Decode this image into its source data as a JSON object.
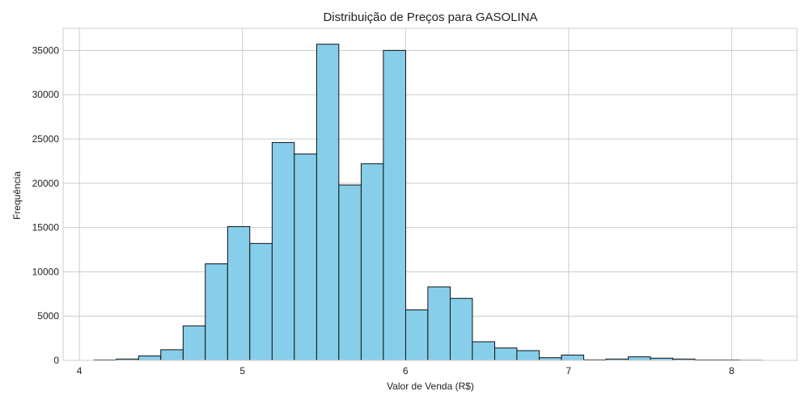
{
  "chart_data": {
    "type": "bar",
    "title": "Distribuição de Preços para GASOLINA",
    "xlabel": "Valor de Venda (R$)",
    "ylabel": "Frequência",
    "xlim": [
      3.9,
      8.4
    ],
    "ylim": [
      0,
      37500
    ],
    "xticks": [
      4,
      5,
      6,
      7,
      8
    ],
    "yticks": [
      0,
      5000,
      10000,
      15000,
      20000,
      25000,
      30000,
      35000
    ],
    "grid": true,
    "bar_color": "#87CEEB",
    "edge_color": "#111111",
    "bins": [
      {
        "x0": 4.09,
        "x1": 4.226,
        "value": 50
      },
      {
        "x0": 4.226,
        "x1": 4.363,
        "value": 150
      },
      {
        "x0": 4.363,
        "x1": 4.499,
        "value": 500
      },
      {
        "x0": 4.499,
        "x1": 4.636,
        "value": 1200
      },
      {
        "x0": 4.636,
        "x1": 4.772,
        "value": 3900
      },
      {
        "x0": 4.772,
        "x1": 4.909,
        "value": 10900
      },
      {
        "x0": 4.909,
        "x1": 5.045,
        "value": 15100
      },
      {
        "x0": 5.045,
        "x1": 5.182,
        "value": 13200
      },
      {
        "x0": 5.182,
        "x1": 5.318,
        "value": 24600
      },
      {
        "x0": 5.318,
        "x1": 5.455,
        "value": 23300
      },
      {
        "x0": 5.455,
        "x1": 5.591,
        "value": 35700
      },
      {
        "x0": 5.591,
        "x1": 5.728,
        "value": 19800
      },
      {
        "x0": 5.728,
        "x1": 5.864,
        "value": 22200
      },
      {
        "x0": 5.864,
        "x1": 6.001,
        "value": 35000
      },
      {
        "x0": 6.001,
        "x1": 6.137,
        "value": 5700
      },
      {
        "x0": 6.137,
        "x1": 6.274,
        "value": 8300
      },
      {
        "x0": 6.274,
        "x1": 6.41,
        "value": 7000
      },
      {
        "x0": 6.41,
        "x1": 6.547,
        "value": 2100
      },
      {
        "x0": 6.547,
        "x1": 6.683,
        "value": 1400
      },
      {
        "x0": 6.683,
        "x1": 6.82,
        "value": 1100
      },
      {
        "x0": 6.82,
        "x1": 6.956,
        "value": 300
      },
      {
        "x0": 6.956,
        "x1": 7.093,
        "value": 600
      },
      {
        "x0": 7.093,
        "x1": 7.229,
        "value": 60
      },
      {
        "x0": 7.229,
        "x1": 7.366,
        "value": 150
      },
      {
        "x0": 7.366,
        "x1": 7.502,
        "value": 400
      },
      {
        "x0": 7.502,
        "x1": 7.639,
        "value": 250
      },
      {
        "x0": 7.639,
        "x1": 7.775,
        "value": 150
      },
      {
        "x0": 7.775,
        "x1": 7.912,
        "value": 50
      },
      {
        "x0": 7.912,
        "x1": 8.048,
        "value": 50
      },
      {
        "x0": 8.048,
        "x1": 8.185,
        "value": 20
      }
    ]
  }
}
